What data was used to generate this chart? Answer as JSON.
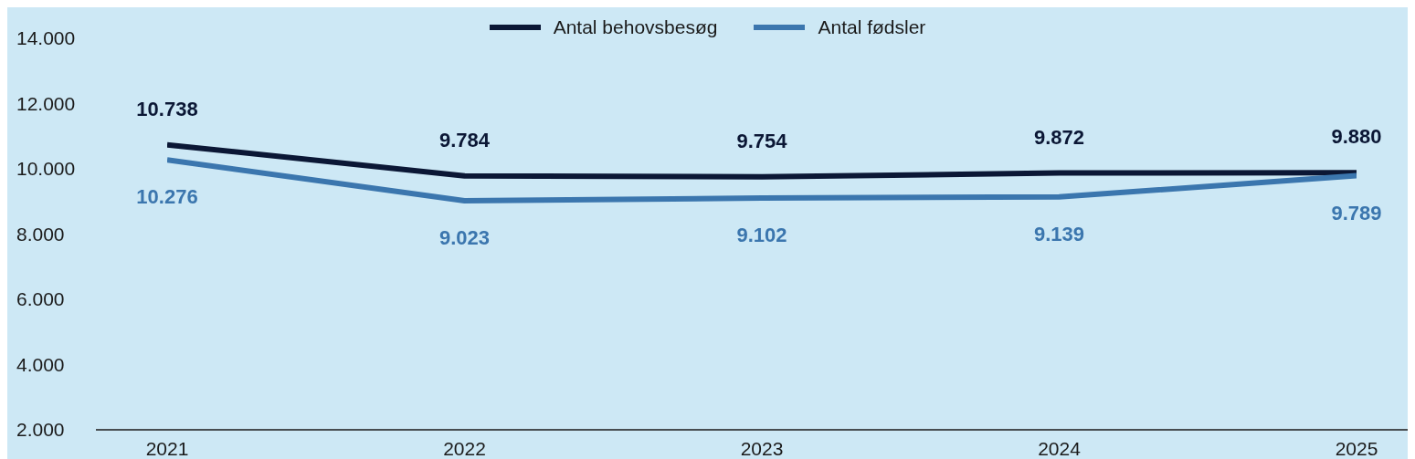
{
  "chart_data": {
    "type": "line",
    "categories": [
      "2021",
      "2022",
      "2023",
      "2024",
      "2025"
    ],
    "series": [
      {
        "name": "Antal behovsbesøg",
        "color": "#0b1735",
        "values": [
          10738,
          9784,
          9754,
          9872,
          9880
        ],
        "value_labels": [
          "10.738",
          "9.784",
          "9.754",
          "9.872",
          "9.880"
        ]
      },
      {
        "name": "Antal fødsler",
        "color": "#3b76ae",
        "values": [
          10276,
          9023,
          9102,
          9139,
          9789
        ],
        "value_labels": [
          "10.276",
          "9.023",
          "9.102",
          "9.139",
          "9.789"
        ]
      }
    ],
    "ylim": [
      2000,
      14000
    ],
    "yticks": [
      {
        "value": 2000,
        "label": "2.000"
      },
      {
        "value": 4000,
        "label": "4.000"
      },
      {
        "value": 6000,
        "label": "6.000"
      },
      {
        "value": 8000,
        "label": "8.000"
      },
      {
        "value": 10000,
        "label": "10.000"
      },
      {
        "value": 12000,
        "label": "12.000"
      },
      {
        "value": 14000,
        "label": "14.000"
      }
    ],
    "grid": false,
    "legend": "top",
    "marker": "none",
    "line_style": "solid"
  }
}
